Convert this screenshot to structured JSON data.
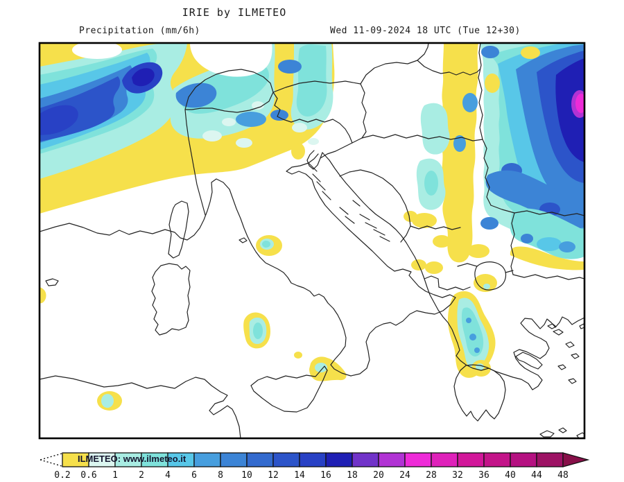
{
  "header": {
    "title": "IRIE by ILMETEO",
    "left_label": "Precipitation (mm/6h)",
    "right_label": "Wed 11-09-2024 18 UTC (Tue 12+30)"
  },
  "map": {
    "region": "Italy, central Mediterranean and Balkans",
    "watermark": "ILMETEO: www.ilmeteo.it",
    "background_color": "#ffffff",
    "frame_color": "#000000",
    "coastline_color": "#222222"
  },
  "legend": {
    "units": "mm/6h",
    "tick_labels": [
      "0.2",
      "0.6",
      "1",
      "2",
      "4",
      "6",
      "8",
      "10",
      "12",
      "14",
      "16",
      "18",
      "20",
      "24",
      "28",
      "32",
      "36",
      "40",
      "44",
      "48"
    ],
    "cell_colors": [
      "#F6E04B",
      "#DCF6F0",
      "#A9EDE3",
      "#7FE2DB",
      "#58C7E8",
      "#479EDE",
      "#3C84D6",
      "#336ACE",
      "#2C54C9",
      "#2841C5",
      "#1F1FB4",
      "#7133C9",
      "#B133D4",
      "#EE2BD8",
      "#DF21BA",
      "#D2179A",
      "#C31489",
      "#B51181",
      "#9D1264"
    ],
    "overflow_color": "#871049",
    "below_min_style": "dotted-open-triangle"
  }
}
